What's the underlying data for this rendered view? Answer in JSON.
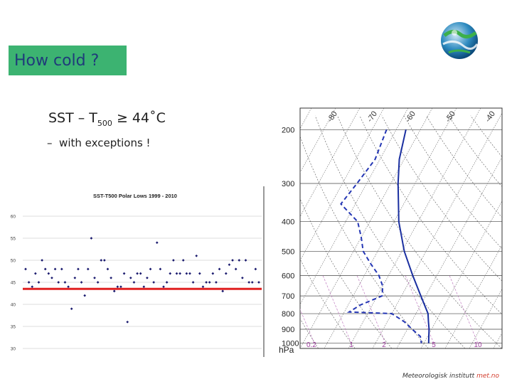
{
  "slide": {
    "title": "How cold ?",
    "bullet_main_prefix": "SST – T",
    "bullet_main_sub": "500",
    "bullet_main_suffix": " ≥ 44˚C",
    "bullet_dash": "–",
    "bullet_sub": "with exceptions !",
    "footer_text": "Meteorologisk institutt",
    "footer_brand": "met.no"
  },
  "chart_data": [
    {
      "type": "scatter",
      "title": "SST-T500 Polar Lows 1999 - 2010",
      "xlabel": "",
      "ylabel": "",
      "ylim": [
        30,
        60
      ],
      "yticks": [
        30,
        35,
        40,
        45,
        50,
        55,
        60
      ],
      "grid": true,
      "threshold": 43.5,
      "threshold_color": "#e02020",
      "point_color": "#1a1a6e",
      "x": [
        1,
        2,
        3,
        4,
        5,
        6,
        7,
        8,
        9,
        10,
        11,
        12,
        13,
        14,
        15,
        16,
        17,
        18,
        19,
        20,
        21,
        22,
        23,
        24,
        25,
        26,
        27,
        28,
        29,
        30,
        31,
        32,
        33,
        34,
        35,
        36,
        37,
        38,
        39,
        40,
        41,
        42,
        43,
        44,
        45,
        46,
        47,
        48,
        49,
        50,
        51,
        52,
        53,
        54,
        55,
        56,
        57,
        58,
        59,
        60,
        61,
        62,
        63,
        64,
        65,
        66,
        67,
        68,
        69,
        70,
        71,
        72
      ],
      "y": [
        48,
        45,
        44,
        47,
        45,
        50,
        48,
        47,
        46,
        48,
        45,
        48,
        45,
        44,
        39,
        46,
        48,
        45,
        42,
        48,
        55,
        46,
        45,
        50,
        50,
        48,
        46,
        43,
        44,
        44,
        47,
        36,
        46,
        45,
        47,
        47,
        44,
        46,
        48,
        45,
        54,
        48,
        44,
        45,
        47,
        50,
        47,
        47,
        50,
        47,
        47,
        45,
        51,
        47,
        44,
        45,
        45,
        47,
        45,
        48,
        43,
        47,
        49,
        50,
        48,
        50,
        46,
        50,
        45,
        45,
        48,
        45
      ]
    },
    {
      "type": "line",
      "chart_kind": "tephigram",
      "ylabel": "hPa",
      "yticks": [
        200,
        300,
        400,
        500,
        600,
        700,
        800,
        900,
        1000
      ],
      "isotherm_labels": [
        "-80",
        "-70",
        "-60",
        "-50",
        "-40"
      ],
      "mixing_ratio_labels": [
        "0.2",
        "1",
        "2",
        "5",
        "10"
      ],
      "series": [
        {
          "style": "solid",
          "color": "#1a2fa0",
          "points": [
            [
              200,
              -56
            ],
            [
              250,
              -52
            ],
            [
              300,
              -47
            ],
            [
              400,
              -38
            ],
            [
              500,
              -29
            ],
            [
              600,
              -20
            ],
            [
              700,
              -12
            ],
            [
              800,
              -5
            ],
            [
              850,
              -3
            ],
            [
              900,
              -1
            ],
            [
              950,
              0.5
            ],
            [
              1000,
              2
            ]
          ]
        },
        {
          "style": "dashed",
          "color": "#2436b4",
          "points": [
            [
              200,
              -64
            ],
            [
              250,
              -62
            ],
            [
              300,
              -64
            ],
            [
              350,
              -66
            ],
            [
              400,
              -55
            ],
            [
              450,
              -50
            ],
            [
              500,
              -46
            ],
            [
              550,
              -40
            ],
            [
              600,
              -34
            ],
            [
              650,
              -30
            ],
            [
              700,
              -28
            ],
            [
              750,
              -35
            ],
            [
              790,
              -38
            ],
            [
              800,
              -20
            ],
            [
              850,
              -13
            ],
            [
              900,
              -8
            ],
            [
              950,
              -3
            ],
            [
              1000,
              -1
            ]
          ]
        }
      ]
    }
  ]
}
